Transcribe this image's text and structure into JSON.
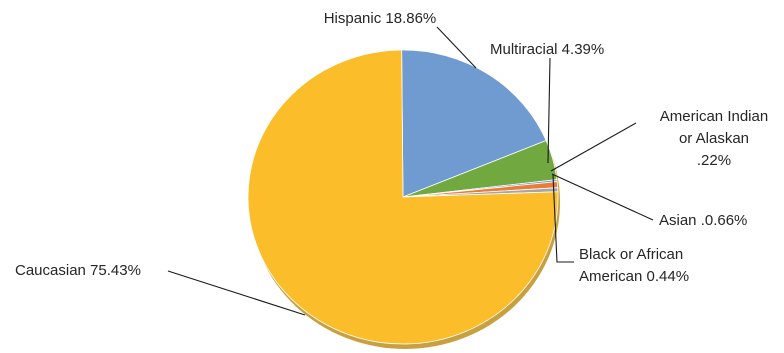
{
  "chart_data": {
    "type": "pie",
    "title": "",
    "slices": [
      {
        "label": "Hispanic 18.86%",
        "name": "Hispanic",
        "value": 18.86,
        "color": "#6f9bd0",
        "label_lines": [
          "Hispanic 18.86%"
        ]
      },
      {
        "label": "Multiracial 4.39%",
        "name": "Multiracial",
        "value": 4.39,
        "color": "#72a840",
        "label_lines": [
          "Multiracial 4.39%"
        ]
      },
      {
        "label": "American Indian or Alaskan .22%",
        "name": "American Indian or Alaskan",
        "value": 0.22,
        "color": "#6f9bd0",
        "label_lines": [
          "American Indian",
          "or Alaskan",
          ".22%"
        ]
      },
      {
        "label": "Asian .0.66%",
        "name": "Asian",
        "value": 0.66,
        "color": "#ea7c38",
        "label_lines": [
          "Asian .0.66%"
        ]
      },
      {
        "label": "Black or African American 0.44%",
        "name": "Black or African American",
        "value": 0.44,
        "color": "#a5a5a5",
        "label_lines": [
          "Black or African",
          "American 0.44%"
        ]
      },
      {
        "label": "Caucasian 75.43%",
        "name": "Caucasian",
        "value": 75.43,
        "color": "#fbbe2a",
        "label_lines": [
          "Caucasian 75.43%"
        ]
      }
    ]
  }
}
